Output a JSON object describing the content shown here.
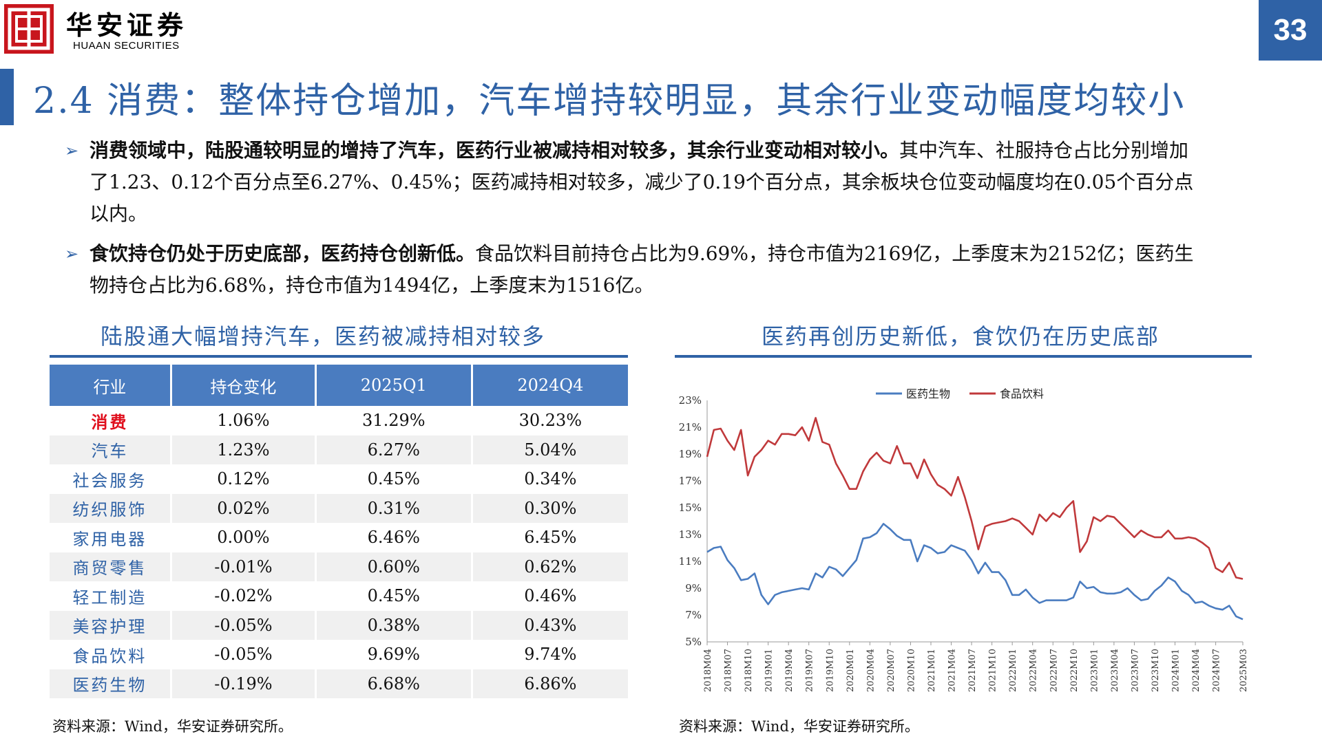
{
  "header": {
    "brand_cn": "华安证券",
    "brand_en": "HUAAN SECURITIES",
    "page_number": "33"
  },
  "title": "2.4 消费：整体持仓增加，汽车增持较明显，其余行业变动幅度均较小",
  "bullets": [
    {
      "bold": "消费领域中，陆股通较明显的增持了汽车，医药行业被减持相对较多，其余行业变动相对较小。",
      "text": "其中汽车、社服持仓占比分别增加了1.23、0.12个百分点至6.27%、0.45%；医药减持相对较多，减少了0.19个百分点，其余板块仓位变动幅度均在0.05个百分点以内。"
    },
    {
      "bold": "食饮持仓仍处于历史底部，医药持仓创新低。",
      "text": "食品饮料目前持仓占比为9.69%，持仓市值为2169亿，上季度末为2152亿；医药生物持仓占比为6.68%，持仓市值为1494亿，上季度末为1516亿。"
    }
  ],
  "left_section": {
    "title": "陆股通大幅增持汽车，医药被减持相对较多",
    "source": "资料来源：Wind，华安证券研究所。",
    "table": {
      "headers": [
        "行业",
        "持仓变化",
        "2025Q1",
        "2024Q4"
      ],
      "rows": [
        [
          "消费",
          "1.06%",
          "31.29%",
          "30.23%"
        ],
        [
          "汽车",
          "1.23%",
          "6.27%",
          "5.04%"
        ],
        [
          "社会服务",
          "0.12%",
          "0.45%",
          "0.34%"
        ],
        [
          "纺织服饰",
          "0.02%",
          "0.31%",
          "0.30%"
        ],
        [
          "家用电器",
          "0.00%",
          "6.46%",
          "6.45%"
        ],
        [
          "商贸零售",
          "-0.01%",
          "0.60%",
          "0.62%"
        ],
        [
          "轻工制造",
          "-0.02%",
          "0.45%",
          "0.46%"
        ],
        [
          "美容护理",
          "-0.05%",
          "0.38%",
          "0.43%"
        ],
        [
          "食品饮料",
          "-0.05%",
          "9.69%",
          "9.74%"
        ],
        [
          "医药生物",
          "-0.19%",
          "6.68%",
          "6.86%"
        ]
      ]
    }
  },
  "right_section": {
    "title": "医药再创历史新低，食饮仍在历史底部",
    "source": "资料来源：Wind，华安证券研究所。"
  },
  "colors": {
    "brand_red": "#c8161d",
    "accent_blue": "#2f62a6",
    "series_blue": "#4a7cc0",
    "series_red": "#c0393b",
    "highlight_red": "#e0101e"
  },
  "chart_data": {
    "type": "line",
    "title": "",
    "xlabel": "",
    "ylabel": "",
    "ylim": [
      0.05,
      0.23
    ],
    "yticks": [
      "23%",
      "21%",
      "19%",
      "17%",
      "15%",
      "13%",
      "11%",
      "9%",
      "7%",
      "5%"
    ],
    "legend_position": "top",
    "x_tick_labels": [
      "2018M04",
      "2018M07",
      "2018M10",
      "2019M01",
      "2019M04",
      "2019M07",
      "2019M10",
      "2020M01",
      "2020M04",
      "2020M07",
      "2020M10",
      "2021M01",
      "2021M04",
      "2021M07",
      "2021M10",
      "2022M01",
      "2022M04",
      "2022M07",
      "2022M10",
      "2023M01",
      "2023M04",
      "2023M07",
      "2023M10",
      "2024M01",
      "2024M04",
      "2024M07",
      "2025M03"
    ],
    "x": [
      "2018M04",
      "2018M05",
      "2018M06",
      "2018M07",
      "2018M08",
      "2018M09",
      "2018M10",
      "2018M11",
      "2018M12",
      "2019M01",
      "2019M02",
      "2019M03",
      "2019M04",
      "2019M05",
      "2019M06",
      "2019M07",
      "2019M08",
      "2019M09",
      "2019M10",
      "2019M11",
      "2019M12",
      "2020M01",
      "2020M02",
      "2020M03",
      "2020M04",
      "2020M05",
      "2020M06",
      "2020M07",
      "2020M08",
      "2020M09",
      "2020M10",
      "2020M11",
      "2020M12",
      "2021M01",
      "2021M02",
      "2021M03",
      "2021M04",
      "2021M05",
      "2021M06",
      "2021M07",
      "2021M08",
      "2021M09",
      "2021M10",
      "2021M11",
      "2021M12",
      "2022M01",
      "2022M02",
      "2022M03",
      "2022M04",
      "2022M05",
      "2022M06",
      "2022M07",
      "2022M08",
      "2022M09",
      "2022M10",
      "2022M11",
      "2022M12",
      "2023M01",
      "2023M02",
      "2023M03",
      "2023M04",
      "2023M05",
      "2023M06",
      "2023M07",
      "2023M08",
      "2023M09",
      "2023M10",
      "2023M11",
      "2023M12",
      "2024M01",
      "2024M02",
      "2024M03",
      "2024M04",
      "2024M05",
      "2024M06",
      "2024M07",
      "2024M08",
      "2024M09",
      "2024M12",
      "2025M03"
    ],
    "series": [
      {
        "name": "医药生物",
        "color": "#4a7cc0",
        "values": [
          0.117,
          0.12,
          0.121,
          0.111,
          0.105,
          0.096,
          0.097,
          0.101,
          0.085,
          0.078,
          0.085,
          0.087,
          0.088,
          0.089,
          0.09,
          0.089,
          0.101,
          0.098,
          0.106,
          0.104,
          0.099,
          0.105,
          0.111,
          0.127,
          0.128,
          0.131,
          0.138,
          0.134,
          0.129,
          0.126,
          0.126,
          0.11,
          0.122,
          0.12,
          0.116,
          0.117,
          0.122,
          0.12,
          0.118,
          0.111,
          0.101,
          0.109,
          0.102,
          0.102,
          0.096,
          0.085,
          0.085,
          0.089,
          0.083,
          0.079,
          0.081,
          0.081,
          0.081,
          0.081,
          0.083,
          0.095,
          0.09,
          0.091,
          0.087,
          0.086,
          0.086,
          0.087,
          0.09,
          0.085,
          0.081,
          0.082,
          0.088,
          0.092,
          0.098,
          0.095,
          0.088,
          0.085,
          0.079,
          0.08,
          0.077,
          0.075,
          0.074,
          0.077,
          0.069,
          0.0668
        ]
      },
      {
        "name": "食品饮料",
        "color": "#c0393b",
        "values": [
          0.188,
          0.208,
          0.209,
          0.2,
          0.193,
          0.208,
          0.174,
          0.188,
          0.193,
          0.2,
          0.197,
          0.205,
          0.205,
          0.204,
          0.21,
          0.2,
          0.217,
          0.199,
          0.197,
          0.183,
          0.174,
          0.164,
          0.164,
          0.177,
          0.186,
          0.191,
          0.185,
          0.183,
          0.196,
          0.183,
          0.183,
          0.172,
          0.186,
          0.175,
          0.167,
          0.164,
          0.159,
          0.173,
          0.158,
          0.14,
          0.119,
          0.136,
          0.138,
          0.139,
          0.14,
          0.142,
          0.14,
          0.135,
          0.13,
          0.145,
          0.14,
          0.146,
          0.143,
          0.15,
          0.155,
          0.117,
          0.125,
          0.143,
          0.14,
          0.144,
          0.143,
          0.138,
          0.133,
          0.128,
          0.133,
          0.13,
          0.128,
          0.128,
          0.133,
          0.127,
          0.127,
          0.128,
          0.127,
          0.124,
          0.12,
          0.105,
          0.102,
          0.109,
          0.098,
          0.0969
        ]
      }
    ]
  }
}
